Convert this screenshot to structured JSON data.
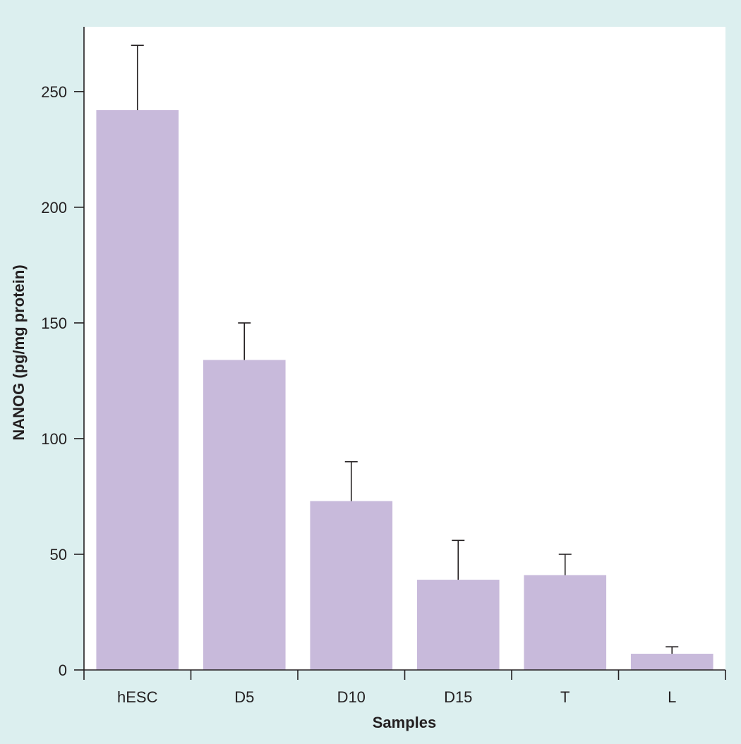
{
  "colors": {
    "background": "#dcefef",
    "plot_area": "#ffffff",
    "bar_fill": "#c8badb",
    "axis": "#231f20"
  },
  "chart_data": {
    "type": "bar",
    "categories": [
      "hESC",
      "D5",
      "D10",
      "D15",
      "T",
      "L"
    ],
    "values": [
      242,
      134,
      73,
      39,
      41,
      7
    ],
    "error_upper": [
      270,
      150,
      90,
      56,
      50,
      10
    ],
    "title": "",
    "xlabel": "Samples",
    "ylabel": "NANOG (pg/mg protein)",
    "ylim": [
      0,
      278
    ],
    "yticks": [
      0,
      50,
      100,
      150,
      200,
      250
    ],
    "grid": false,
    "legend": "none"
  }
}
